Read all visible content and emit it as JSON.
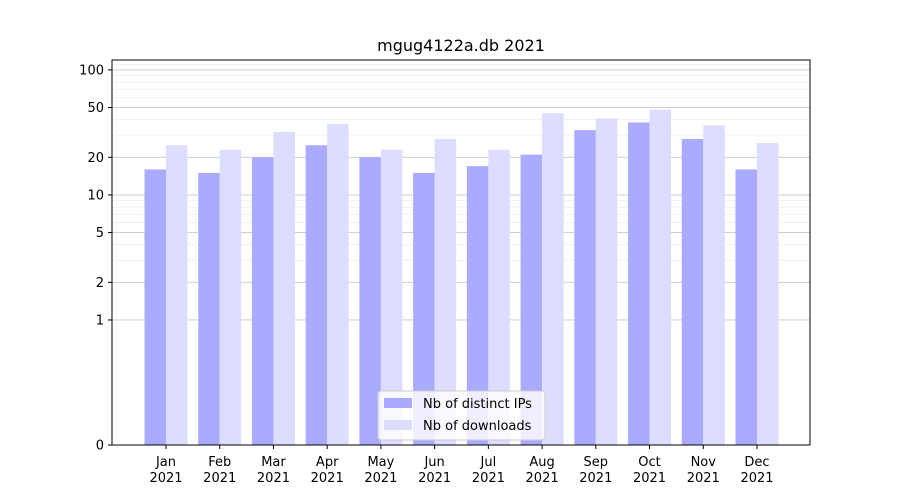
{
  "chart_data": {
    "type": "bar",
    "title": "mgug4122a.db 2021",
    "xlabel": "",
    "ylabel": "",
    "yscale": "symlog",
    "ylim": [
      0,
      120
    ],
    "yticks": [
      0,
      1,
      2,
      5,
      10,
      20,
      50,
      100
    ],
    "grid": "y",
    "legend_position": "bottom-center",
    "categories": [
      [
        "Jan",
        "2021"
      ],
      [
        "Feb",
        "2021"
      ],
      [
        "Mar",
        "2021"
      ],
      [
        "Apr",
        "2021"
      ],
      [
        "May",
        "2021"
      ],
      [
        "Jun",
        "2021"
      ],
      [
        "Jul",
        "2021"
      ],
      [
        "Aug",
        "2021"
      ],
      [
        "Sep",
        "2021"
      ],
      [
        "Oct",
        "2021"
      ],
      [
        "Nov",
        "2021"
      ],
      [
        "Dec",
        "2021"
      ]
    ],
    "series": [
      {
        "name": "Nb of distinct IPs",
        "color": "#aaaaff",
        "values": [
          16,
          15,
          20,
          25,
          20,
          15,
          17,
          21,
          33,
          38,
          28,
          16
        ]
      },
      {
        "name": "Nb of downloads",
        "color": "#ddddff",
        "values": [
          25,
          23,
          32,
          37,
          23,
          28,
          23,
          45,
          41,
          48,
          36,
          26
        ]
      }
    ]
  }
}
